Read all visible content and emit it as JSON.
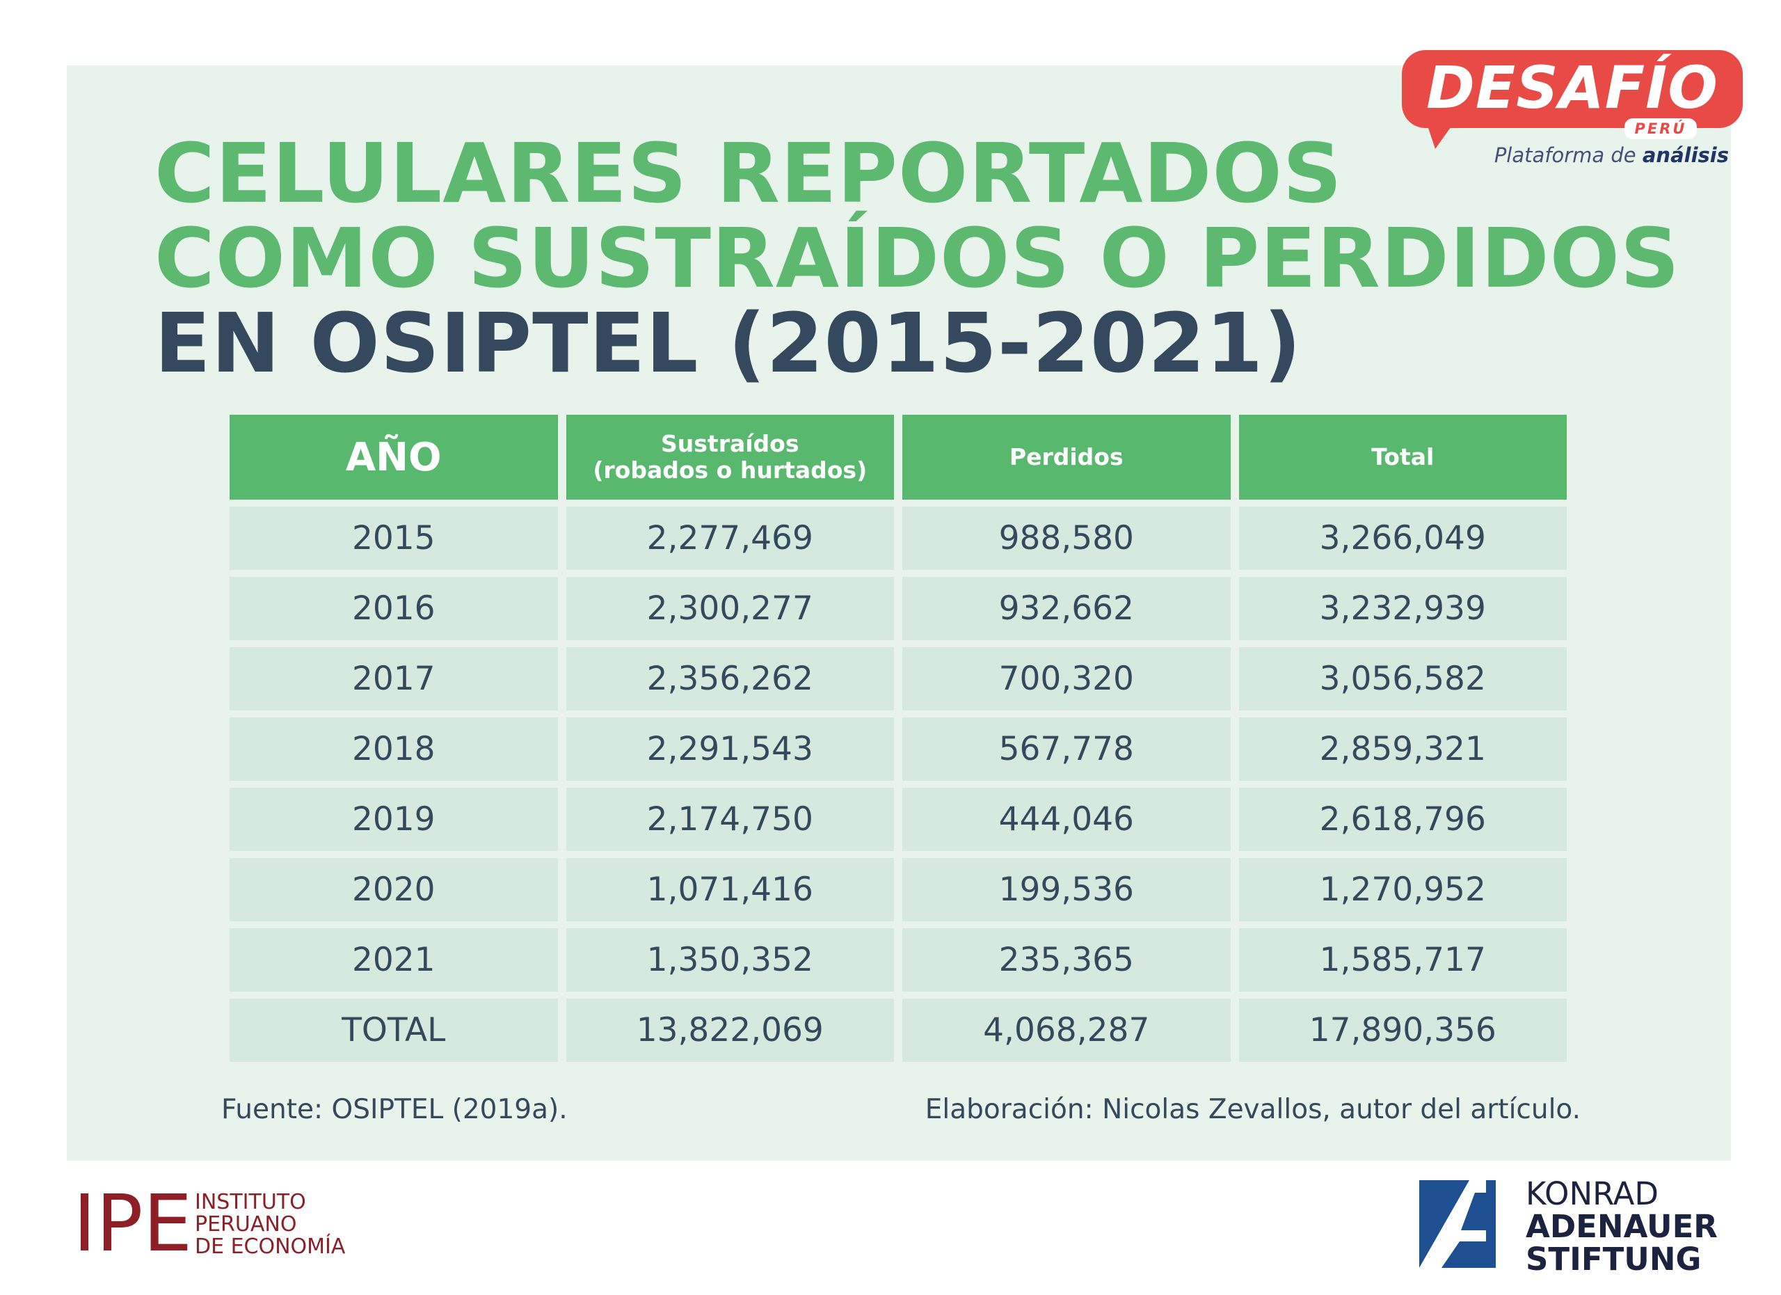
{
  "title": {
    "line1": "CELULARES REPORTADOS",
    "line2": "COMO SUSTRAÍDOS O PERDIDOS",
    "line3": "EN OSIPTEL (2015-2021)"
  },
  "brand": {
    "name": "DESAFÍO",
    "country": "PERÚ",
    "tagline_prefix": "Plataforma de",
    "tagline_emphasis": "análisis",
    "color": "#e84a45"
  },
  "colors": {
    "header_green": "#58b86d",
    "title_green": "#5cb96f",
    "title_dark": "#34495e",
    "cell_bg": "#d5e9de",
    "panel_bg": "#e8f3ec"
  },
  "chart_data": {
    "type": "table",
    "columns": [
      {
        "line1": "AÑO",
        "line2": ""
      },
      {
        "line1": "Sustraídos",
        "line2": "(robados o hurtados)"
      },
      {
        "line1": "Perdidos",
        "line2": ""
      },
      {
        "line1": "Total",
        "line2": ""
      }
    ],
    "rows": [
      [
        "2015",
        "2,277,469",
        "988,580",
        "3,266,049"
      ],
      [
        "2016",
        "2,300,277",
        "932,662",
        "3,232,939"
      ],
      [
        "2017",
        "2,356,262",
        "700,320",
        "3,056,582"
      ],
      [
        "2018",
        "2,291,543",
        "567,778",
        "2,859,321"
      ],
      [
        "2019",
        "2,174,750",
        "444,046",
        "2,618,796"
      ],
      [
        "2020",
        "1,071,416",
        "199,536",
        "1,270,952"
      ],
      [
        "2021",
        "1,350,352",
        "235,365",
        "1,585,717"
      ],
      [
        "TOTAL",
        "13,822,069",
        "4,068,287",
        "17,890,356"
      ]
    ]
  },
  "footer": {
    "source": "Fuente: OSIPTEL (2019a).",
    "credit": "Elaboración: Nicolas Zevallos, autor del artículo."
  },
  "ipe": {
    "mark": "IPE",
    "line1": "INSTITUTO",
    "line2": "PERUANO",
    "line3": "DE ECONOMÍA",
    "color": "#8e1f26"
  },
  "kas": {
    "line1": "KONRAD",
    "line2": "ADENAUER",
    "line3": "STIFTUNG",
    "color": "#1d4f91"
  }
}
